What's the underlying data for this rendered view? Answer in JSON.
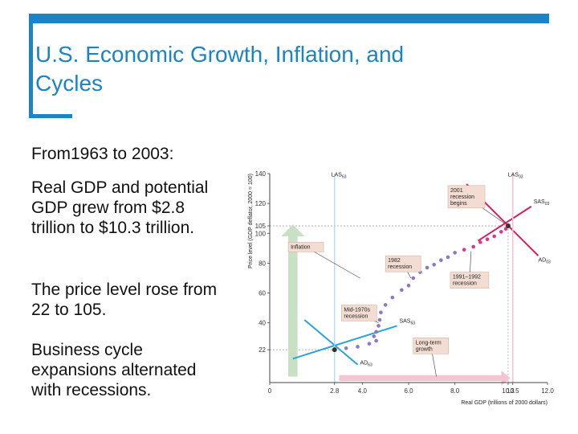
{
  "slide": {
    "title_line1": "U.S. Economic Growth, Inflation, and",
    "title_line2": "Cycles",
    "intro": "From1963 to 2003:",
    "point1": "Real GDP and potential GDP grew from $2.8 trillion to $10.3 trillion.",
    "point2": "The price level rose from 22 to 105.",
    "point3": "Business cycle expansions alternated with recessions."
  },
  "colors": {
    "accent": "#1a84c4",
    "ad63": "#2aa3d8",
    "ad03": "#d61f5f",
    "path": "#8b78c0",
    "path_late": "#d63a8a",
    "inflation_arrow": "#c8e0c4",
    "growth_arrow": "#f4c4d2",
    "callout_bg": "#f3ddd2",
    "lras_line": "#a8d8f0"
  },
  "chart_data": {
    "type": "scatter",
    "title": "",
    "xlabel": "Real GDP (trillions of 2000 dollars)",
    "ylabel": "Price level (GDP deflator, 2000 = 100)",
    "xlim": [
      0,
      12.0
    ],
    "ylim": [
      0,
      140
    ],
    "x_ticks": [
      {
        "v": 0,
        "label": "0"
      },
      {
        "v": 2.8,
        "label": "2.8"
      },
      {
        "v": 4.0,
        "label": "4.0"
      },
      {
        "v": 6.0,
        "label": "6.0"
      },
      {
        "v": 8.0,
        "label": "8.0"
      },
      {
        "v": 10.3,
        "label": "10.3"
      },
      {
        "v": 10.5,
        "label": "10.5"
      },
      {
        "v": 12.0,
        "label": "12.0"
      }
    ],
    "y_ticks": [
      {
        "v": 22,
        "label": "22"
      },
      {
        "v": 40,
        "label": "40"
      },
      {
        "v": 60,
        "label": "60"
      },
      {
        "v": 80,
        "label": "80"
      },
      {
        "v": 100,
        "label": "100"
      },
      {
        "v": 105,
        "label": "105"
      },
      {
        "v": 120,
        "label": "120"
      },
      {
        "v": 140,
        "label": "140"
      }
    ],
    "points": [
      {
        "x": 2.8,
        "y": 22
      },
      {
        "x": 3.3,
        "y": 23
      },
      {
        "x": 3.8,
        "y": 24
      },
      {
        "x": 4.3,
        "y": 26
      },
      {
        "x": 4.6,
        "y": 28
      },
      {
        "x": 4.5,
        "y": 31
      },
      {
        "x": 4.6,
        "y": 34
      },
      {
        "x": 4.7,
        "y": 38
      },
      {
        "x": 4.75,
        "y": 42
      },
      {
        "x": 4.8,
        "y": 47
      },
      {
        "x": 5.0,
        "y": 52
      },
      {
        "x": 5.3,
        "y": 57
      },
      {
        "x": 5.7,
        "y": 62
      },
      {
        "x": 6.0,
        "y": 65
      },
      {
        "x": 6.2,
        "y": 70
      },
      {
        "x": 6.5,
        "y": 74
      },
      {
        "x": 6.8,
        "y": 77
      },
      {
        "x": 7.1,
        "y": 79
      },
      {
        "x": 7.4,
        "y": 82
      },
      {
        "x": 7.7,
        "y": 84
      },
      {
        "x": 8.0,
        "y": 87
      },
      {
        "x": 8.4,
        "y": 89
      },
      {
        "x": 8.8,
        "y": 91
      },
      {
        "x": 9.1,
        "y": 94
      },
      {
        "x": 9.4,
        "y": 96
      },
      {
        "x": 9.7,
        "y": 98
      },
      {
        "x": 10.0,
        "y": 101
      },
      {
        "x": 10.2,
        "y": 103
      },
      {
        "x": 10.3,
        "y": 105
      }
    ],
    "curves": [
      {
        "name": "AD63",
        "label_main": "AD",
        "label_sub": "63",
        "points": [
          [
            1.5,
            42
          ],
          [
            3.8,
            12
          ]
        ]
      },
      {
        "name": "SAS63",
        "label_main": "SAS",
        "label_sub": "63",
        "points": [
          [
            1.0,
            16
          ],
          [
            5.5,
            38
          ]
        ]
      },
      {
        "name": "AD03",
        "label_main": "AD",
        "label_sub": "03",
        "points": [
          [
            8.5,
            133
          ],
          [
            11.6,
            85
          ]
        ]
      },
      {
        "name": "SAS03",
        "label_main": "SAS",
        "label_sub": "03",
        "points": [
          [
            9.0,
            95
          ],
          [
            11.3,
            118
          ]
        ]
      },
      {
        "name": "LAS63",
        "label_main": "LAS",
        "label_sub": "63",
        "points": [
          [
            2.8,
            0
          ],
          [
            2.8,
            140
          ]
        ]
      },
      {
        "name": "LAS03",
        "label_main": "LAS",
        "label_sub": "03",
        "points": [
          [
            10.5,
            0
          ],
          [
            10.5,
            140
          ]
        ]
      }
    ],
    "annotations": [
      {
        "text": "Inflation"
      },
      {
        "text": "1982 recession"
      },
      {
        "text": "Mid-1970s recession"
      },
      {
        "text": "2001 recession begins"
      },
      {
        "text": "1991–1992 recession"
      },
      {
        "text": "Long-term growth"
      }
    ]
  }
}
